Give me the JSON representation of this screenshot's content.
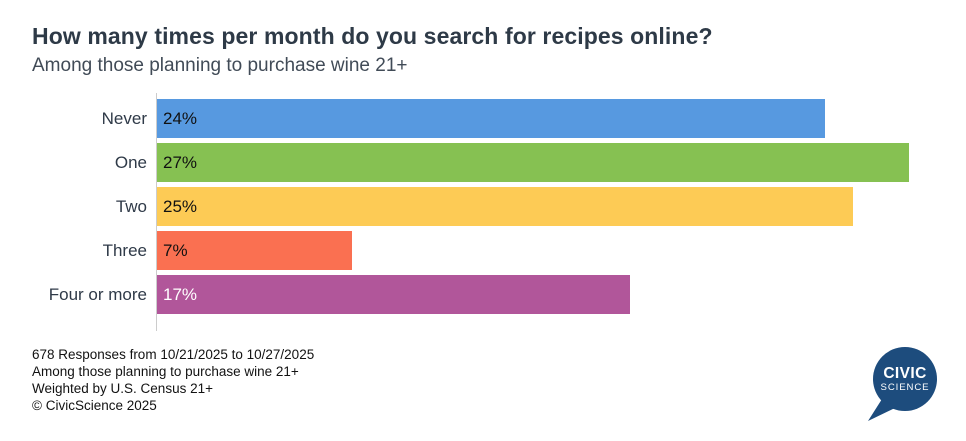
{
  "header": {
    "title": "How many times per month do you search for recipes online?",
    "subtitle": "Among those planning to purchase wine 21+"
  },
  "chart_data": {
    "type": "bar",
    "orientation": "horizontal",
    "title": "How many times per month do you search for recipes online?",
    "subtitle": "Among those planning to purchase wine 21+",
    "categories": [
      "Never",
      "One",
      "Two",
      "Three",
      "Four or more"
    ],
    "values": [
      24,
      27,
      25,
      7,
      17
    ],
    "value_labels": [
      "24%",
      "27%",
      "25%",
      "7%",
      "17%"
    ],
    "bar_colors": [
      "#5799E0",
      "#86C152",
      "#FDCB55",
      "#FA7051",
      "#B1569A"
    ],
    "value_label_colors": [
      "#111111",
      "#111111",
      "#111111",
      "#111111",
      "#ffffff"
    ],
    "xlim": [
      0,
      27
    ],
    "grid": false,
    "legend": "none",
    "axis_line_color": "#cccccc"
  },
  "footer": {
    "lines": [
      "678 Responses from 10/21/2025 to 10/27/2025",
      "Among those planning to purchase wine 21+",
      "Weighted by U.S. Census 21+",
      "© CivicScience 2025"
    ]
  },
  "logo": {
    "line1": "CIVIC",
    "line2": "SCIENCE",
    "bubble_color": "#1D4C7D",
    "text_color": "#ffffff"
  }
}
